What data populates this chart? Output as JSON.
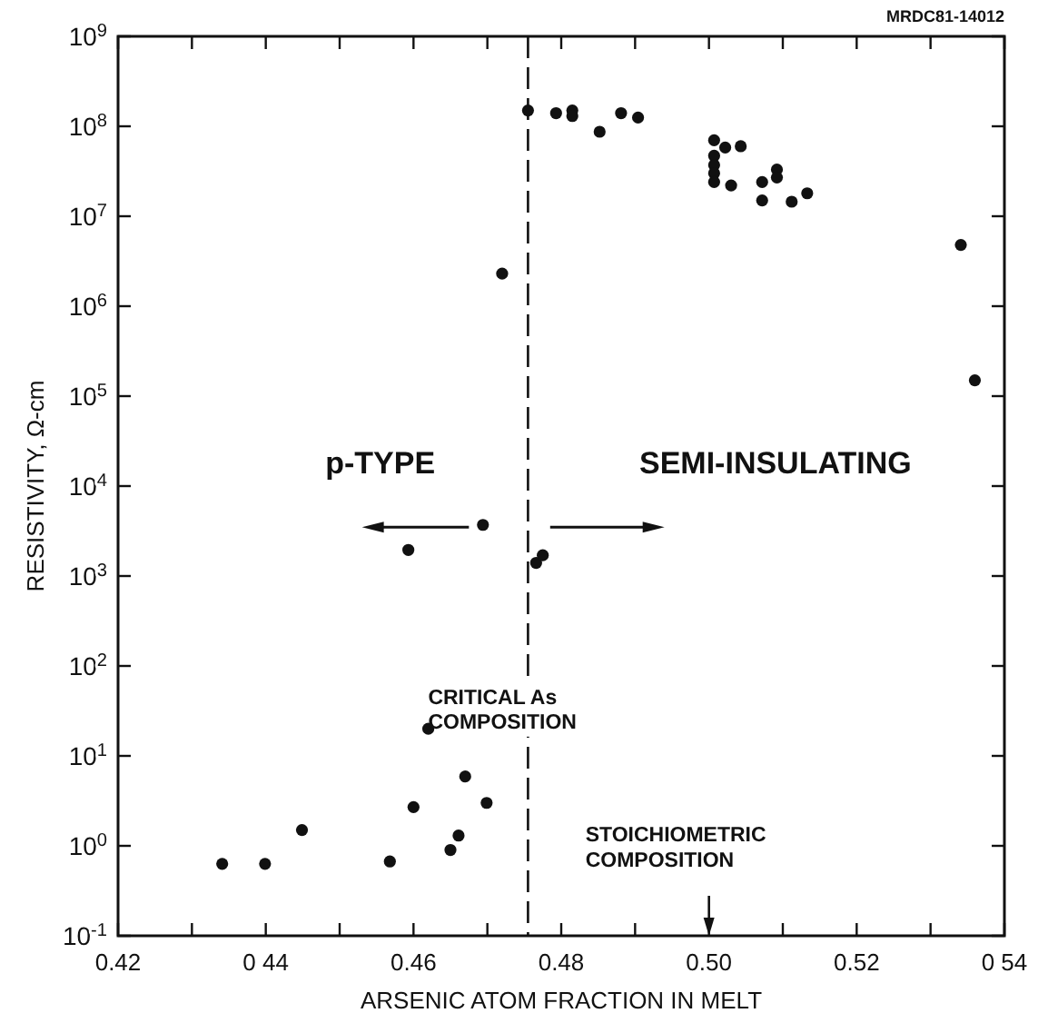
{
  "chart_data": {
    "type": "scatter",
    "xlabel": "ARSENIC ATOM FRACTION IN MELT",
    "ylabel": "RESISTIVITY, Ω-cm",
    "log": "y",
    "xlim": [
      0.42,
      0.54
    ],
    "xticks": [
      {
        "value": 0.42,
        "label": "0.42"
      },
      {
        "value": 0.44,
        "label": "0 44"
      },
      {
        "value": 0.46,
        "label": "0.46"
      },
      {
        "value": 0.48,
        "label": "0.48"
      },
      {
        "value": 0.5,
        "label": "0.50"
      },
      {
        "value": 0.52,
        "label": "0.52"
      },
      {
        "value": 0.54,
        "label": "0 54"
      }
    ],
    "ylim": [
      0.1,
      1000000000
    ],
    "yticks": [
      {
        "value": 0.1,
        "label": "10$^{-1}$"
      },
      {
        "value": 1,
        "label": "10$^{0}$"
      },
      {
        "value": 10,
        "label": "10$^{1}$"
      },
      {
        "value": 100,
        "label": "10$^{2}$"
      },
      {
        "value": 1000,
        "label": "10$^{3}$"
      },
      {
        "value": 10000,
        "label": "10$^{4}$"
      },
      {
        "value": 100000,
        "label": "10$^{5}$"
      },
      {
        "value": 1000000,
        "label": "10$^{6}$"
      },
      {
        "value": 10000000,
        "label": "10$^{7}$"
      },
      {
        "value": 100000000,
        "label": "10$^{8}$"
      },
      {
        "value": 1000000000,
        "label": "10$^{9}$"
      }
    ],
    "marker": "circle",
    "grid": false,
    "series": [
      {
        "color": "#111111",
        "x": [
          0.4755,
          0.4793,
          0.4815,
          0.4815,
          0.4852,
          0.4881,
          0.4904,
          0.5007,
          0.5022,
          0.5043,
          0.5007,
          0.5007,
          0.5007,
          0.5007,
          0.503,
          0.5072,
          0.5092,
          0.5092,
          0.5072,
          0.5112,
          0.5133,
          0.5341,
          0.536,
          0.472,
          0.4694,
          0.4593,
          0.4766,
          0.4775,
          0.462,
          0.467,
          0.46,
          0.4699,
          0.4449,
          0.4661,
          0.465,
          0.4568,
          0.4341,
          0.4399
        ],
        "values": [
          150000000,
          140000000,
          150000000,
          130000000,
          87000000,
          140000000,
          125000000,
          70000000,
          58000000,
          60000000,
          47000000,
          37000000,
          30000000,
          24000000,
          22000000,
          24000000,
          33000000,
          27000000,
          15000000,
          14500000,
          18000000,
          4800000,
          150000,
          2300000,
          3700,
          1950,
          1400,
          1700,
          20,
          5.9,
          2.7,
          3.0,
          1.5,
          1.3,
          0.9,
          0.67,
          0.63,
          0.63
        ]
      }
    ],
    "ref_lines": [
      {
        "axis": "x",
        "value": 0.4755,
        "label": "CRITICAL As\nCOMPOSITION",
        "line_style": "dashed"
      }
    ],
    "annotations": [
      "MRDC81-14012",
      "p-TYPE",
      "SEMI-INSULATING",
      "STOICHIOMETRIC\nCOMPOSITION"
    ]
  }
}
